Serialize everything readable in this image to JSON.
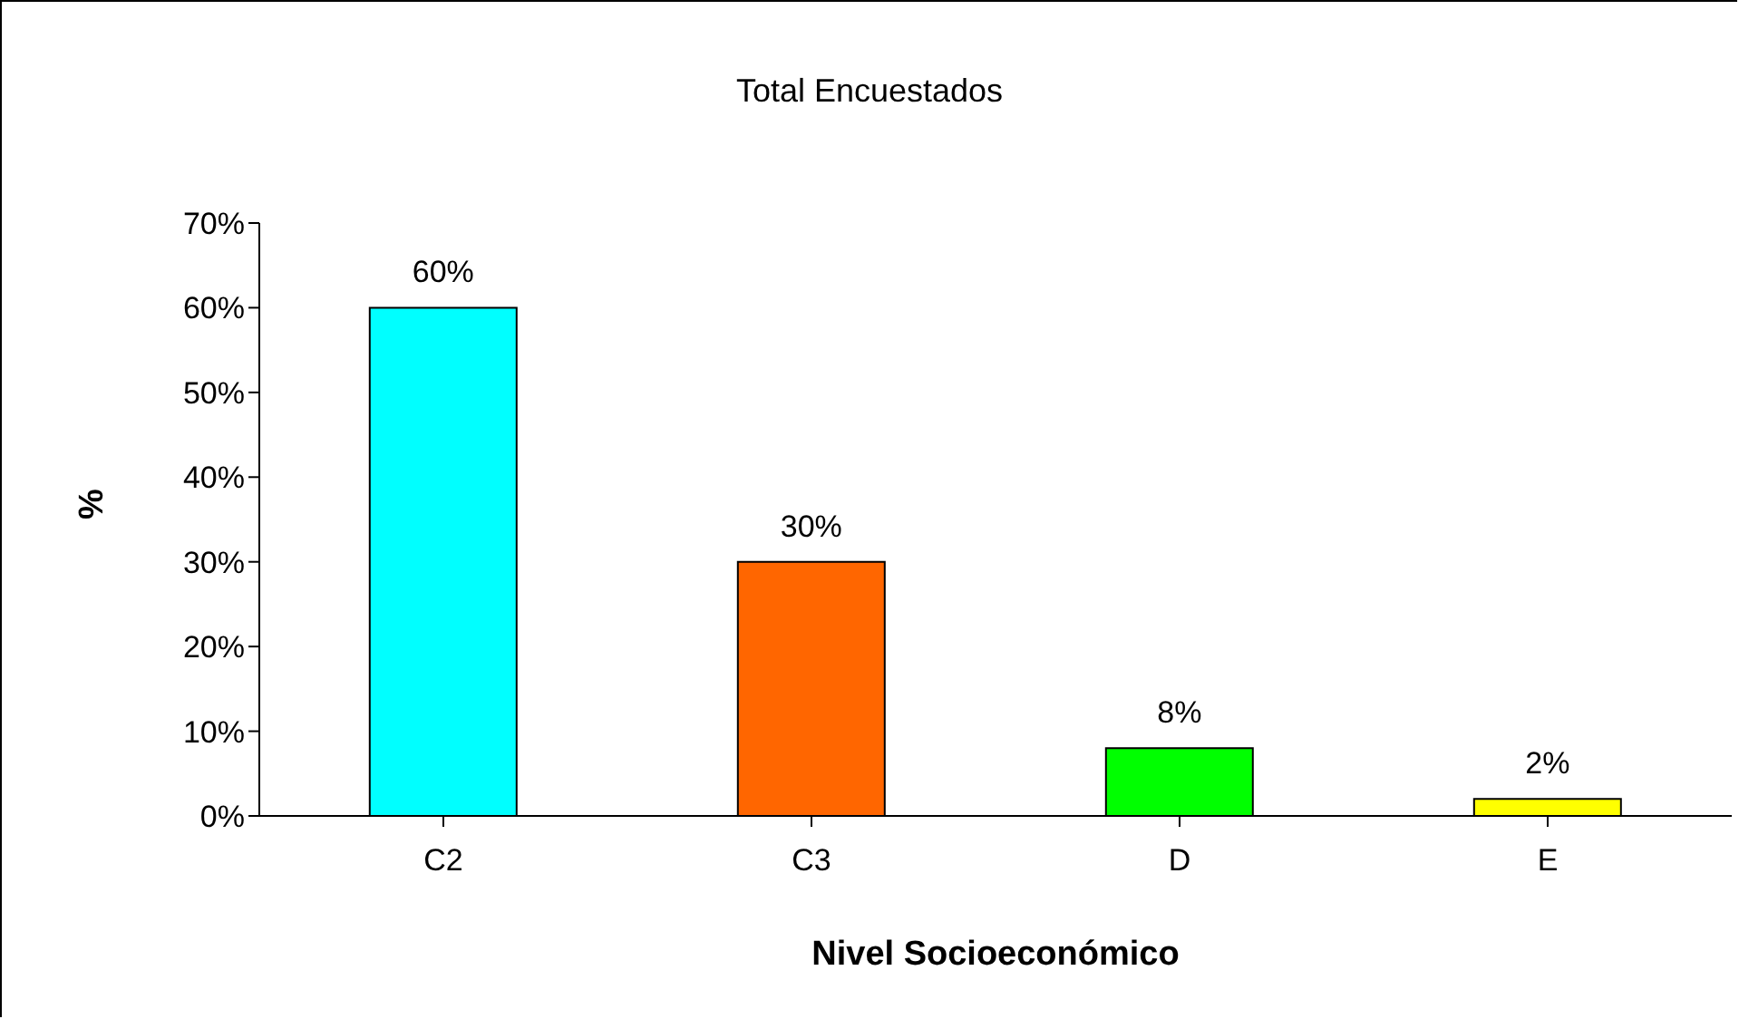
{
  "chart_data": {
    "type": "bar",
    "title": "Total Encuestados",
    "xlabel": "Nivel Socioeconómico",
    "ylabel": "%",
    "categories": [
      "C2",
      "C3",
      "D",
      "E"
    ],
    "values": [
      60,
      30,
      8,
      2
    ],
    "colors": [
      "#00ffff",
      "#ff6600",
      "#00ff00",
      "#ffff00"
    ],
    "value_labels": [
      "60%",
      "30%",
      "8%",
      "2%"
    ],
    "ylim": [
      0,
      70
    ],
    "yticks": [
      {
        "value": 0,
        "label": "0%"
      },
      {
        "value": 10,
        "label": "10%"
      },
      {
        "value": 20,
        "label": "20%"
      },
      {
        "value": 30,
        "label": "30%"
      },
      {
        "value": 40,
        "label": "40%"
      },
      {
        "value": 50,
        "label": "50%"
      },
      {
        "value": 60,
        "label": "60%"
      },
      {
        "value": 70,
        "label": "70%"
      }
    ],
    "grid": false,
    "legend": false
  }
}
